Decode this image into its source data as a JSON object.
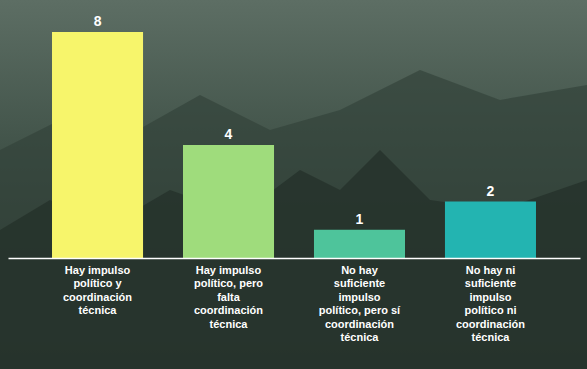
{
  "chart_data": {
    "type": "bar",
    "categories": [
      "Hay impulso político y coordinación técnica",
      "Hay impulso político, pero falta coordinación técnica",
      "No hay suficiente impulso político, pero sí coordinación técnica",
      "No hay ni suficiente impulso político ni coordinación técnica"
    ],
    "values": [
      8,
      4,
      1,
      2
    ],
    "colors": [
      "#f7f56b",
      "#9fdc7c",
      "#4ec49b",
      "#23b4b1"
    ],
    "ylim": [
      0,
      8
    ],
    "data_labels": true,
    "tick_labels": "x"
  }
}
